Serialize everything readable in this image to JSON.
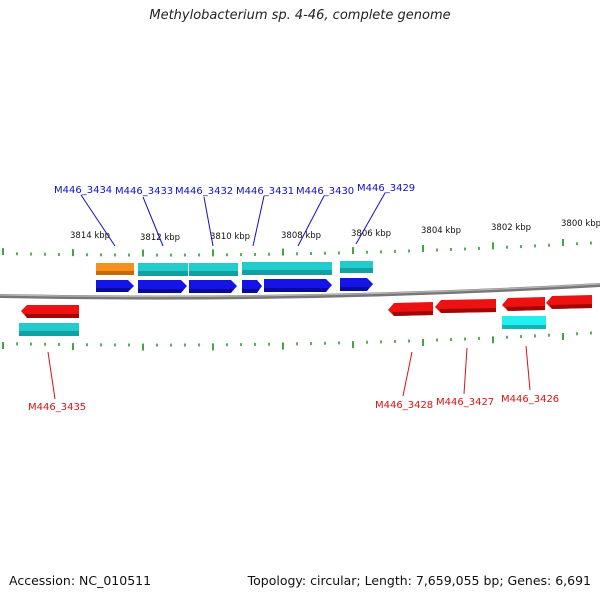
{
  "title": "Methylobacterium sp. 4-46, complete genome",
  "footer": {
    "accession": "Accession: NC_010511",
    "summary": "Topology: circular; Length: 7,659,055 bp; Genes: 6,691"
  },
  "colors": {
    "backbone": "#888888",
    "tick": "#1a8a1a",
    "forward_gene": "#1414e6",
    "reverse_gene": "#ee1111",
    "cds_feature": "#22cccc",
    "orange_feature": "#f5901a",
    "forward_label": "#1010c8",
    "reverse_label": "#dd1111"
  },
  "scale_labels": [
    "3814 kbp",
    "3812 kbp",
    "3810 kbp",
    "3808 kbp",
    "3806 kbp",
    "3804 kbp",
    "3802 kbp",
    "3800 kbp"
  ],
  "forward_genes": [
    {
      "locus": "M446_3434"
    },
    {
      "locus": "M446_3433"
    },
    {
      "locus": "M446_3432"
    },
    {
      "locus": "M446_3431"
    },
    {
      "locus": "M446_3430"
    },
    {
      "locus": "M446_3429"
    }
  ],
  "reverse_genes": [
    {
      "locus": "M446_3435"
    },
    {
      "locus": "M446_3428"
    },
    {
      "locus": "M446_3427"
    },
    {
      "locus": "M446_3426"
    }
  ]
}
